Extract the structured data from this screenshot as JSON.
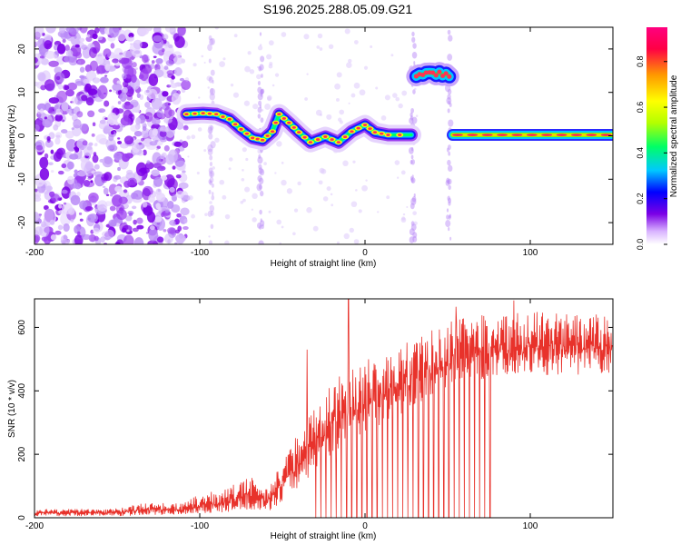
{
  "title": "S196.2025.288.05.09.G21",
  "chart_data": [
    {
      "type": "heatmap",
      "xlabel": "Height of straight line (km)",
      "ylabel": "Frequency (Hz)",
      "xlim": [
        -200,
        150
      ],
      "ylim": [
        -25,
        25
      ],
      "xticks": [
        -200,
        -100,
        0,
        100
      ],
      "yticks": [
        -20,
        -10,
        0,
        10,
        20
      ],
      "xtick_labels": [
        "-200",
        "-100",
        "0",
        "100"
      ],
      "ytick_labels": [
        "-20",
        "-10",
        "0",
        "10",
        "20"
      ],
      "colorbar": {
        "label": "Normalized spectral amplitude",
        "range": [
          0,
          0.95
        ],
        "ticks": [
          0,
          0.2,
          0.4,
          0.6,
          0.8
        ],
        "tick_labels": [
          "0.0",
          "0.2",
          "0.4",
          "0.6",
          "0.8"
        ],
        "colors": [
          "#ffffff",
          "#7b00e6",
          "#0000ff",
          "#00c8ff",
          "#00ff66",
          "#b4ff00",
          "#ffff00",
          "#ff9900",
          "#ff0044",
          "#ff007f"
        ]
      },
      "ridge": [
        {
          "x": -108,
          "y": 5.0
        },
        {
          "x": -98,
          "y": 5.2
        },
        {
          "x": -90,
          "y": 5.0
        },
        {
          "x": -82,
          "y": 3.8
        },
        {
          "x": -75,
          "y": 1.5
        },
        {
          "x": -68,
          "y": -0.5
        },
        {
          "x": -62,
          "y": -1.0
        },
        {
          "x": -56,
          "y": 1.0
        },
        {
          "x": -52,
          "y": 5.0
        },
        {
          "x": -46,
          "y": 3.0
        },
        {
          "x": -40,
          "y": 0.8
        },
        {
          "x": -33,
          "y": -1.5
        },
        {
          "x": -24,
          "y": -0.2
        },
        {
          "x": -16,
          "y": -1.5
        },
        {
          "x": -8,
          "y": 1.0
        },
        {
          "x": 0,
          "y": 2.5
        },
        {
          "x": 6,
          "y": 0.8
        },
        {
          "x": 14,
          "y": 0.2
        },
        {
          "x": 28,
          "y": 0.2
        }
      ],
      "segment2": {
        "x_start": 31,
        "x_end": 52,
        "y": 14.2
      },
      "segment3": {
        "x_start": 53,
        "x_end": 150,
        "y": 0.2
      }
    },
    {
      "type": "line",
      "xlabel": "Height of straight line (km)",
      "ylabel": "SNR (10 * v/v)",
      "xlim": [
        -200,
        150
      ],
      "ylim": [
        0,
        690
      ],
      "xticks": [
        -200,
        -100,
        0,
        100
      ],
      "yticks": [
        0,
        200,
        400,
        600
      ],
      "xtick_labels": [
        "-200",
        "-100",
        "0",
        "100"
      ],
      "ytick_labels": [
        "0",
        "200",
        "400",
        "600"
      ],
      "line_color": "#e8322b",
      "envelope": [
        {
          "x": -200,
          "lo": 5,
          "hi": 28
        },
        {
          "x": -150,
          "lo": 5,
          "hi": 30
        },
        {
          "x": -130,
          "lo": 8,
          "hi": 50
        },
        {
          "x": -110,
          "lo": 10,
          "hi": 45
        },
        {
          "x": -100,
          "lo": 12,
          "hi": 75
        },
        {
          "x": -85,
          "lo": 15,
          "hi": 90
        },
        {
          "x": -70,
          "lo": 25,
          "hi": 130
        },
        {
          "x": -58,
          "lo": 20,
          "hi": 100
        },
        {
          "x": -48,
          "lo": 60,
          "hi": 200
        },
        {
          "x": -35,
          "lo": 120,
          "hi": 330
        },
        {
          "x": -20,
          "lo": 200,
          "hi": 430
        },
        {
          "x": 0,
          "lo": 270,
          "hi": 510
        },
        {
          "x": 20,
          "lo": 320,
          "hi": 540
        },
        {
          "x": 40,
          "lo": 380,
          "hi": 590
        },
        {
          "x": 60,
          "lo": 430,
          "hi": 640
        },
        {
          "x": 100,
          "lo": 450,
          "hi": 650
        },
        {
          "x": 150,
          "lo": 450,
          "hi": 640
        }
      ],
      "spikes": [
        {
          "x": -35,
          "value": 530
        },
        {
          "x": -10,
          "value": 690
        },
        {
          "x": 90,
          "value": 685
        },
        {
          "x": 55,
          "value": 665
        }
      ],
      "dropouts_x_range": [
        -30,
        78
      ]
    }
  ]
}
